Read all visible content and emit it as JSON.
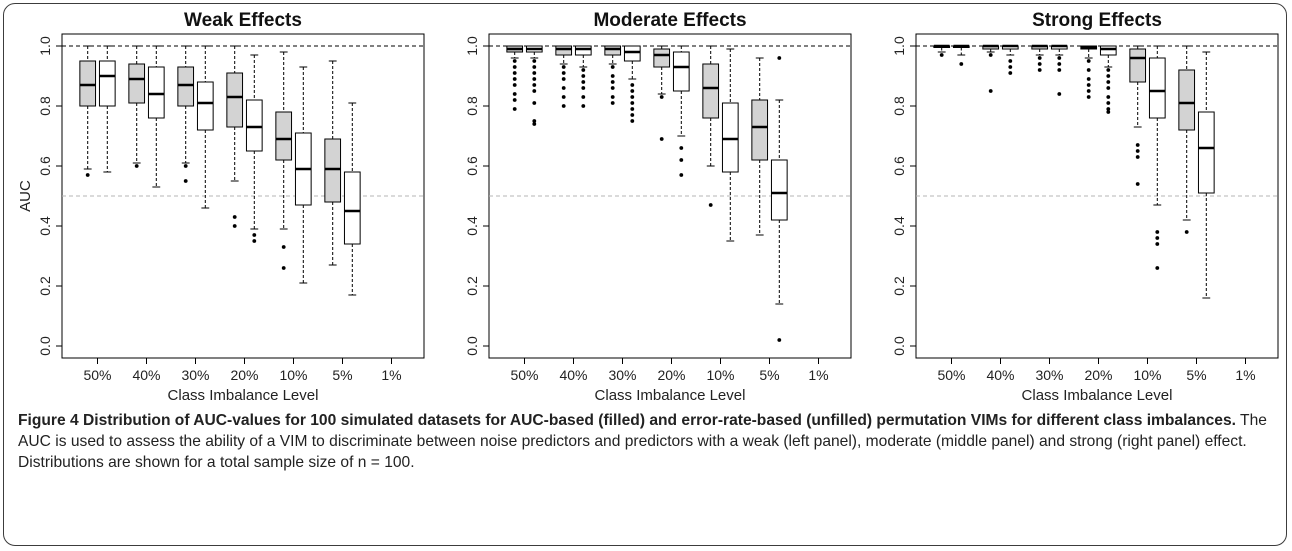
{
  "figure": {
    "caption_title": "Figure 4 Distribution of AUC-values for 100 simulated datasets for AUC-based (filled) and error-rate-based (unfilled) permutation VIMs for different class imbalances.",
    "caption_text": "The AUC is used to assess the ability of a VIM to discriminate between noise predictors and predictors with a weak (left panel), moderate (middle panel) and strong (right panel) effect. Distributions are shown for a total sample size of n = 100."
  },
  "colors": {
    "filled_box": "#d3d3d3",
    "unfilled_box": "#ffffff",
    "reference_line": "#000000",
    "chance_line": "#b5b5b5"
  },
  "chart_data": [
    {
      "type": "boxplot",
      "title": "Weak Effects",
      "xlabel": "Class Imbalance Level",
      "ylabel": "AUC",
      "ylim": [
        0.0,
        1.0
      ],
      "yticks": [
        "0.0",
        "0.2",
        "0.4",
        "0.6",
        "0.8",
        "1.0"
      ],
      "categories": [
        "50%",
        "40%",
        "30%",
        "20%",
        "10%",
        "5%",
        "1%"
      ],
      "reference_lines": [
        1.0,
        0.5
      ],
      "series": [
        {
          "fill": "filled",
          "boxes": [
            {
              "q1": 0.8,
              "median": 0.87,
              "q3": 0.95,
              "lower": 0.59,
              "upper": 1.0,
              "outliers": [
                0.57
              ]
            },
            {
              "q1": 0.81,
              "median": 0.89,
              "q3": 0.94,
              "lower": 0.61,
              "upper": 1.0,
              "outliers": [
                0.6
              ]
            },
            {
              "q1": 0.8,
              "median": 0.87,
              "q3": 0.93,
              "lower": 0.61,
              "upper": 1.0,
              "outliers": [
                0.6,
                0.55
              ]
            },
            {
              "q1": 0.73,
              "median": 0.83,
              "q3": 0.91,
              "lower": 0.55,
              "upper": 1.0,
              "outliers": [
                0.43,
                0.4
              ]
            },
            {
              "q1": 0.62,
              "median": 0.69,
              "q3": 0.78,
              "lower": 0.39,
              "upper": 0.98,
              "outliers": [
                0.33,
                0.26
              ]
            },
            {
              "q1": 0.48,
              "median": 0.59,
              "q3": 0.69,
              "lower": 0.27,
              "upper": 0.95,
              "outliers": []
            },
            null
          ]
        },
        {
          "fill": "unfilled",
          "boxes": [
            {
              "q1": 0.8,
              "median": 0.9,
              "q3": 0.95,
              "lower": 0.58,
              "upper": 1.0,
              "outliers": []
            },
            {
              "q1": 0.76,
              "median": 0.84,
              "q3": 0.93,
              "lower": 0.53,
              "upper": 1.0,
              "outliers": []
            },
            {
              "q1": 0.72,
              "median": 0.81,
              "q3": 0.88,
              "lower": 0.46,
              "upper": 1.0,
              "outliers": []
            },
            {
              "q1": 0.65,
              "median": 0.73,
              "q3": 0.82,
              "lower": 0.39,
              "upper": 0.97,
              "outliers": [
                0.37,
                0.35
              ]
            },
            {
              "q1": 0.47,
              "median": 0.59,
              "q3": 0.71,
              "lower": 0.21,
              "upper": 0.93,
              "outliers": []
            },
            {
              "q1": 0.34,
              "median": 0.45,
              "q3": 0.58,
              "lower": 0.17,
              "upper": 0.81,
              "outliers": []
            },
            null
          ]
        }
      ]
    },
    {
      "type": "boxplot",
      "title": "Moderate Effects",
      "xlabel": "Class Imbalance Level",
      "ylabel": "",
      "ylim": [
        0.0,
        1.0
      ],
      "yticks": [
        "0.0",
        "0.2",
        "0.4",
        "0.6",
        "0.8",
        "1.0"
      ],
      "categories": [
        "50%",
        "40%",
        "30%",
        "20%",
        "10%",
        "5%",
        "1%"
      ],
      "reference_lines": [
        1.0,
        0.5
      ],
      "series": [
        {
          "fill": "filled",
          "boxes": [
            {
              "q1": 0.98,
              "median": 0.99,
              "q3": 1.0,
              "lower": 0.96,
              "upper": 1.0,
              "outliers": [
                0.95,
                0.93,
                0.91,
                0.89,
                0.87,
                0.84,
                0.82,
                0.79
              ]
            },
            {
              "q1": 0.97,
              "median": 0.99,
              "q3": 1.0,
              "lower": 0.94,
              "upper": 1.0,
              "outliers": [
                0.93,
                0.91,
                0.89,
                0.86,
                0.83,
                0.8
              ]
            },
            {
              "q1": 0.97,
              "median": 0.99,
              "q3": 1.0,
              "lower": 0.94,
              "upper": 1.0,
              "outliers": [
                0.93,
                0.9,
                0.88,
                0.86,
                0.83,
                0.81
              ]
            },
            {
              "q1": 0.93,
              "median": 0.97,
              "q3": 0.99,
              "lower": 0.84,
              "upper": 1.0,
              "outliers": [
                0.83,
                0.69
              ]
            },
            {
              "q1": 0.76,
              "median": 0.86,
              "q3": 0.94,
              "lower": 0.6,
              "upper": 1.0,
              "outliers": [
                0.47
              ]
            },
            {
              "q1": 0.62,
              "median": 0.73,
              "q3": 0.82,
              "lower": 0.37,
              "upper": 0.96,
              "outliers": []
            },
            null
          ]
        },
        {
          "fill": "unfilled",
          "boxes": [
            {
              "q1": 0.98,
              "median": 0.99,
              "q3": 1.0,
              "lower": 0.96,
              "upper": 1.0,
              "outliers": [
                0.95,
                0.93,
                0.91,
                0.89,
                0.87,
                0.85,
                0.81,
                0.75,
                0.74
              ]
            },
            {
              "q1": 0.97,
              "median": 0.99,
              "q3": 1.0,
              "lower": 0.93,
              "upper": 1.0,
              "outliers": [
                0.92,
                0.9,
                0.88,
                0.86,
                0.83,
                0.8
              ]
            },
            {
              "q1": 0.95,
              "median": 0.98,
              "q3": 1.0,
              "lower": 0.89,
              "upper": 1.0,
              "outliers": [
                0.87,
                0.85,
                0.83,
                0.81,
                0.79,
                0.77,
                0.75
              ]
            },
            {
              "q1": 0.85,
              "median": 0.93,
              "q3": 0.98,
              "lower": 0.7,
              "upper": 1.0,
              "outliers": [
                0.66,
                0.62,
                0.57
              ]
            },
            {
              "q1": 0.58,
              "median": 0.69,
              "q3": 0.81,
              "lower": 0.35,
              "upper": 0.99,
              "outliers": []
            },
            {
              "q1": 0.42,
              "median": 0.51,
              "q3": 0.62,
              "lower": 0.14,
              "upper": 0.82,
              "outliers": [
                0.96,
                0.02
              ]
            },
            null
          ]
        }
      ]
    },
    {
      "type": "boxplot",
      "title": "Strong Effects",
      "xlabel": "Class Imbalance Level",
      "ylabel": "",
      "ylim": [
        0.0,
        1.0
      ],
      "yticks": [
        "0.0",
        "0.2",
        "0.4",
        "0.6",
        "0.8",
        "1.0"
      ],
      "categories": [
        "50%",
        "40%",
        "30%",
        "20%",
        "10%",
        "5%",
        "1%"
      ],
      "reference_lines": [
        1.0,
        0.5
      ],
      "series": [
        {
          "fill": "filled",
          "boxes": [
            {
              "q1": 0.995,
              "median": 1.0,
              "q3": 1.0,
              "lower": 0.98,
              "upper": 1.0,
              "outliers": [
                0.97
              ]
            },
            {
              "q1": 0.99,
              "median": 1.0,
              "q3": 1.0,
              "lower": 0.98,
              "upper": 1.0,
              "outliers": [
                0.97,
                0.85
              ]
            },
            {
              "q1": 0.99,
              "median": 1.0,
              "q3": 1.0,
              "lower": 0.97,
              "upper": 1.0,
              "outliers": [
                0.96,
                0.94,
                0.92
              ]
            },
            {
              "q1": 0.99,
              "median": 0.995,
              "q3": 1.0,
              "lower": 0.96,
              "upper": 1.0,
              "outliers": [
                0.95,
                0.92,
                0.89,
                0.87,
                0.85,
                0.83
              ]
            },
            {
              "q1": 0.88,
              "median": 0.96,
              "q3": 0.99,
              "lower": 0.73,
              "upper": 1.0,
              "outliers": [
                0.67,
                0.65,
                0.63,
                0.54
              ]
            },
            {
              "q1": 0.72,
              "median": 0.81,
              "q3": 0.92,
              "lower": 0.42,
              "upper": 1.0,
              "outliers": [
                0.38
              ]
            },
            null
          ]
        },
        {
          "fill": "unfilled",
          "boxes": [
            {
              "q1": 0.995,
              "median": 1.0,
              "q3": 1.0,
              "lower": 0.97,
              "upper": 1.0,
              "outliers": [
                0.94
              ]
            },
            {
              "q1": 0.99,
              "median": 1.0,
              "q3": 1.0,
              "lower": 0.97,
              "upper": 1.0,
              "outliers": [
                0.95,
                0.93,
                0.91
              ]
            },
            {
              "q1": 0.99,
              "median": 1.0,
              "q3": 1.0,
              "lower": 0.97,
              "upper": 1.0,
              "outliers": [
                0.96,
                0.94,
                0.92,
                0.84
              ]
            },
            {
              "q1": 0.97,
              "median": 0.99,
              "q3": 1.0,
              "lower": 0.93,
              "upper": 1.0,
              "outliers": [
                0.92,
                0.9,
                0.88,
                0.86,
                0.83,
                0.81,
                0.79,
                0.78
              ]
            },
            {
              "q1": 0.76,
              "median": 0.85,
              "q3": 0.96,
              "lower": 0.47,
              "upper": 1.0,
              "outliers": [
                0.38,
                0.36,
                0.34,
                0.26
              ]
            },
            {
              "q1": 0.51,
              "median": 0.66,
              "q3": 0.78,
              "lower": 0.16,
              "upper": 0.98,
              "outliers": []
            },
            null
          ]
        }
      ]
    }
  ]
}
